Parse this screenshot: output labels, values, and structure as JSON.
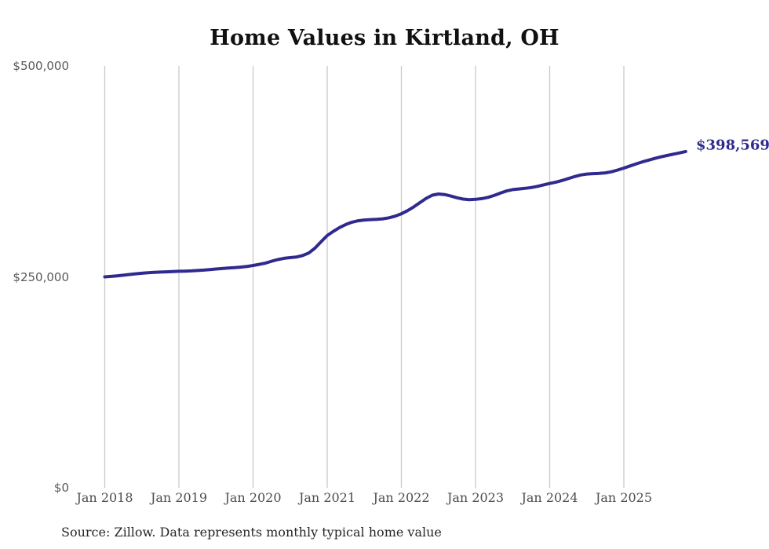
{
  "chart": {
    "title": "Home Values in Kirtland, OH",
    "end_label": "$398,569",
    "source": "Source: Zillow. Data represents monthly typical home value",
    "colors": {
      "line": "#2f2a8e",
      "grid": "#c9c9c9",
      "y_tick_text": "#5a5a5a",
      "x_tick_text": "#4d4d4d",
      "title_text": "#111111",
      "end_label_text": "#2f2a8e",
      "source_text": "#262626",
      "background": "#ffffff"
    }
  },
  "chart_data": {
    "type": "line",
    "title": "Home Values in Kirtland, OH",
    "xlabel": "",
    "ylabel": "",
    "ylim": [
      0,
      500000
    ],
    "grid": "vertical-year-lines-only",
    "legend": "none",
    "x_ticks": [
      "Jan 2018",
      "Jan 2019",
      "Jan 2020",
      "Jan 2021",
      "Jan 2022",
      "Jan 2023",
      "Jan 2024",
      "Jan 2025"
    ],
    "y_ticks": [
      {
        "label": "$0",
        "value": 0
      },
      {
        "label": "$250,000",
        "value": 250000
      },
      {
        "label": "$500,000",
        "value": 500000
      }
    ],
    "x_range": [
      "Jan 2018",
      "Nov 2025"
    ],
    "final_value": 398569,
    "final_value_label": "$398,569",
    "series": [
      {
        "name": "Typical home value (monthly)",
        "monthly_values": [
          250000,
          250600,
          251200,
          252000,
          252800,
          253600,
          254300,
          254900,
          255300,
          255700,
          256000,
          256300,
          256600,
          256800,
          257100,
          257500,
          258000,
          258700,
          259300,
          259900,
          260400,
          260900,
          261500,
          262300,
          263500,
          264800,
          266300,
          268500,
          270500,
          272000,
          272800,
          273500,
          275200,
          278200,
          284000,
          291500,
          299000,
          304000,
          308500,
          312000,
          314800,
          316500,
          317400,
          317900,
          318200,
          318800,
          320000,
          322000,
          324800,
          328500,
          333000,
          338000,
          343000,
          346800,
          348200,
          347600,
          345800,
          343800,
          342200,
          341400,
          341900,
          342700,
          344200,
          346500,
          349300,
          351800,
          353400,
          354200,
          354900,
          355900,
          357300,
          359000,
          360700,
          362300,
          364200,
          366500,
          368800,
          370800,
          371900,
          372300,
          372600,
          373300,
          374600,
          376600,
          379000,
          381500,
          384000,
          386300,
          388400,
          390400,
          392300,
          393900,
          395400,
          396900,
          398569
        ]
      }
    ]
  }
}
